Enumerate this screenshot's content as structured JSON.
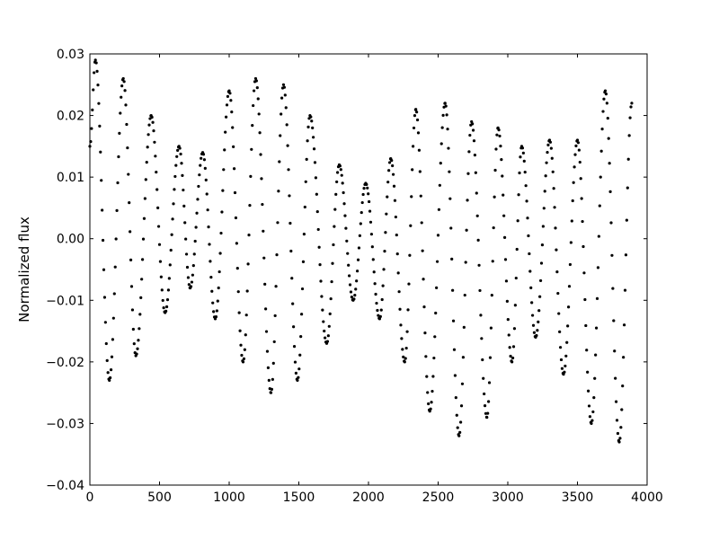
{
  "chart_data": {
    "type": "scatter",
    "title": "",
    "xlabel": "",
    "ylabel": "Normalized flux",
    "xlim": [
      0,
      4000
    ],
    "ylim": [
      -0.04,
      0.03
    ],
    "grid": false,
    "legend": "none",
    "marker_color": "#000000",
    "x_ticks": [
      0,
      500,
      1000,
      1500,
      2000,
      2500,
      3000,
      3500,
      4000
    ],
    "x_tick_labels": [
      "0",
      "500",
      "1000",
      "1500",
      "2000",
      "2500",
      "3000",
      "3500",
      "4000"
    ],
    "y_ticks": [
      -0.04,
      -0.03,
      -0.02,
      -0.01,
      0.0,
      0.01,
      0.02,
      0.03
    ],
    "y_tick_labels": [
      "−0.04",
      "−0.03",
      "−0.02",
      "−0.01",
      "0.00",
      "0.01",
      "0.02",
      "0.03"
    ],
    "series": [
      {
        "x": [
          0,
          40,
          140,
          240,
          330,
          440,
          540,
          640,
          720,
          810,
          900,
          1000,
          1100,
          1190,
          1300,
          1390,
          1490,
          1580,
          1700,
          1790,
          1890,
          1980,
          2080,
          2160,
          2260,
          2340,
          2440,
          2550,
          2650,
          2740,
          2850,
          2930,
          3030,
          3100,
          3200,
          3300,
          3400,
          3500,
          3600,
          3700,
          3800,
          3890
        ],
        "y": [
          0.015,
          0.029,
          -0.023,
          0.026,
          -0.019,
          0.02,
          -0.012,
          0.015,
          -0.008,
          0.014,
          -0.013,
          0.024,
          -0.02,
          0.026,
          -0.025,
          0.025,
          -0.023,
          0.02,
          -0.017,
          0.012,
          -0.01,
          0.009,
          -0.013,
          0.013,
          -0.02,
          0.021,
          -0.028,
          0.022,
          -0.032,
          0.019,
          -0.029,
          0.018,
          -0.02,
          0.015,
          -0.016,
          0.016,
          -0.022,
          0.016,
          -0.03,
          0.024,
          -0.033,
          0.022
        ]
      }
    ]
  }
}
